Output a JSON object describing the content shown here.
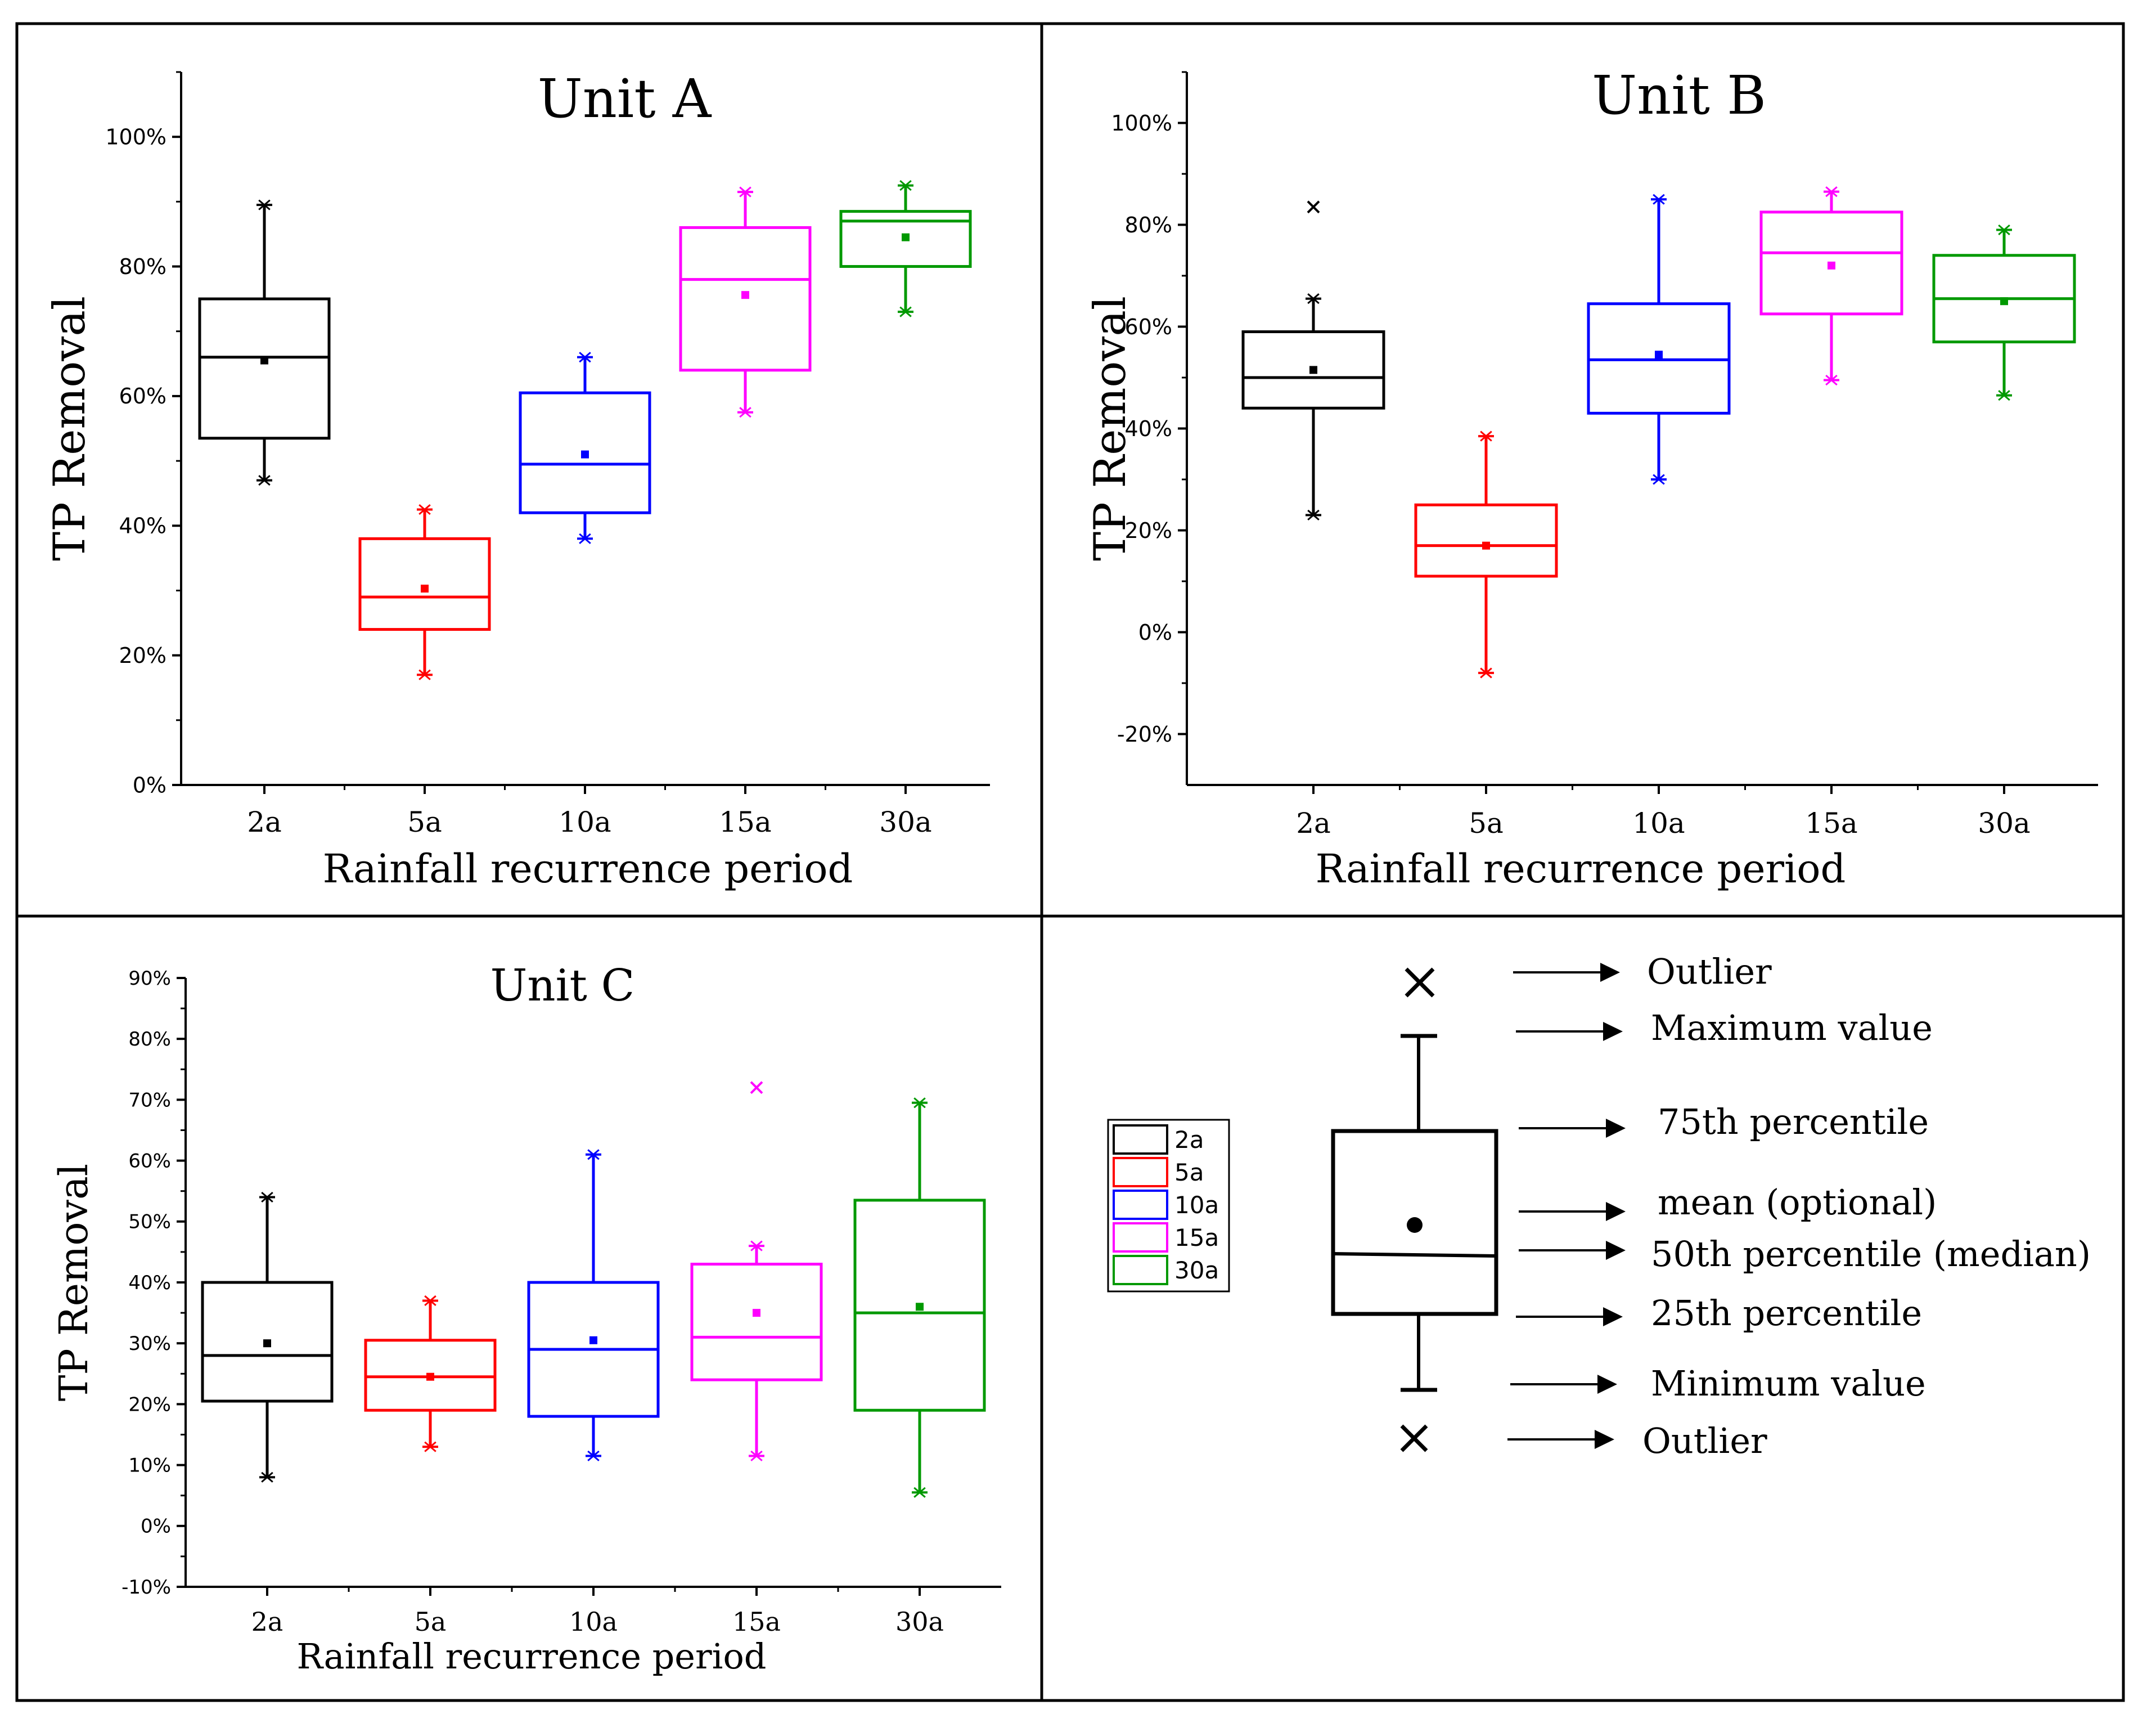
{
  "chart_data": [
    {
      "type": "boxplot",
      "title": "Unit A",
      "xlabel": "Rainfall recurrence period",
      "ylabel": "TP Removal",
      "categories": [
        "2a",
        "5a",
        "10a",
        "15a",
        "30a"
      ],
      "ylim": [
        0,
        110
      ],
      "yticks": [
        0,
        20,
        40,
        60,
        80,
        100
      ],
      "ytick_labels": [
        "0%",
        "20%",
        "40%",
        "60%",
        "80%",
        "100%"
      ],
      "boxes": [
        {
          "category": "2a",
          "min": 47,
          "q1": 53.5,
          "median": 66,
          "q3": 75,
          "max": 89.5,
          "mean": 65.5
        },
        {
          "category": "5a",
          "min": 17,
          "q1": 24,
          "median": 29,
          "q3": 38,
          "max": 42.5,
          "mean": 30.3
        },
        {
          "category": "10a",
          "min": 38,
          "q1": 42,
          "median": 49.5,
          "q3": 60.5,
          "max": 66,
          "mean": 51
        },
        {
          "category": "15a",
          "min": 57.5,
          "q1": 64,
          "median": 78,
          "q3": 86,
          "max": 91.5,
          "mean": 75.6
        },
        {
          "category": "30a",
          "min": 73,
          "q1": 80,
          "median": 87,
          "q3": 88.5,
          "max": 92.5,
          "mean": 84.5
        }
      ],
      "outliers": []
    },
    {
      "type": "boxplot",
      "title": "Unit B",
      "xlabel": "Rainfall recurrence period",
      "ylabel": "TP Removal",
      "categories": [
        "2a",
        "5a",
        "10a",
        "15a",
        "30a"
      ],
      "ylim": [
        -30,
        110
      ],
      "yticks": [
        -20,
        0,
        20,
        40,
        60,
        80,
        100
      ],
      "ytick_labels": [
        "-20%",
        "0%",
        "20%",
        "40%",
        "60%",
        "80%",
        "100%"
      ],
      "boxes": [
        {
          "category": "2a",
          "min": 23,
          "q1": 44,
          "median": 50,
          "q3": 59,
          "max": 65.5,
          "mean": 51.5
        },
        {
          "category": "5a",
          "min": -8,
          "q1": 11,
          "median": 17,
          "q3": 25,
          "max": 38.5,
          "mean": 17
        },
        {
          "category": "10a",
          "min": 30,
          "q1": 43,
          "median": 53.5,
          "q3": 64.5,
          "max": 85,
          "mean": 54.5
        },
        {
          "category": "15a",
          "min": 49.5,
          "q1": 62.5,
          "median": 74.5,
          "q3": 82.5,
          "max": 86.5,
          "mean": 72
        },
        {
          "category": "30a",
          "min": 46.5,
          "q1": 57,
          "median": 65.5,
          "q3": 74,
          "max": 79,
          "mean": 65
        }
      ],
      "outliers": [
        {
          "category": "2a",
          "value": 83.5
        }
      ]
    },
    {
      "type": "boxplot",
      "title": "Unit C",
      "xlabel": "Rainfall recurrence period",
      "ylabel": "TP Removal",
      "categories": [
        "2a",
        "5a",
        "10a",
        "15a",
        "30a"
      ],
      "ylim": [
        -10,
        90
      ],
      "yticks": [
        -10,
        0,
        10,
        20,
        30,
        40,
        50,
        60,
        70,
        80,
        90
      ],
      "ytick_labels": [
        "-10%",
        "0%",
        "10%",
        "20%",
        "30%",
        "40%",
        "50%",
        "60%",
        "70%",
        "80%",
        "90%"
      ],
      "boxes": [
        {
          "category": "2a",
          "min": 8,
          "q1": 20.5,
          "median": 28,
          "q3": 40,
          "max": 54,
          "mean": 30
        },
        {
          "category": "5a",
          "min": 13,
          "q1": 19,
          "median": 24.5,
          "q3": 30.5,
          "max": 37,
          "mean": 24.5
        },
        {
          "category": "10a",
          "min": 11.5,
          "q1": 18,
          "median": 29,
          "q3": 40,
          "max": 61,
          "mean": 30.5
        },
        {
          "category": "15a",
          "min": 11.5,
          "q1": 24,
          "median": 31,
          "q3": 43,
          "max": 46,
          "mean": 35
        },
        {
          "category": "30a",
          "min": 5.5,
          "q1": 19,
          "median": 35,
          "q3": 53.5,
          "max": 69.5,
          "mean": 36
        }
      ],
      "outliers": [
        {
          "category": "15a",
          "value": 72
        }
      ]
    }
  ],
  "legend": {
    "entries": [
      {
        "label": "2a",
        "color": "#000000"
      },
      {
        "label": "5a",
        "color": "#ff0000"
      },
      {
        "label": "10a",
        "color": "#0000ff"
      },
      {
        "label": "15a",
        "color": "#ff00ff"
      },
      {
        "label": "30a",
        "color": "#009900"
      }
    ]
  },
  "key": {
    "outlier_top": "Outlier",
    "max": "Maximum value",
    "q3": "75th percentile",
    "mean": "mean (optional)",
    "median": "50th percentile (median)",
    "q1": "25th percentile",
    "min": "Minimum value",
    "outlier_bottom": "Outlier"
  },
  "colors": [
    "#000000",
    "#ff0000",
    "#0000ff",
    "#ff00ff",
    "#009900"
  ]
}
